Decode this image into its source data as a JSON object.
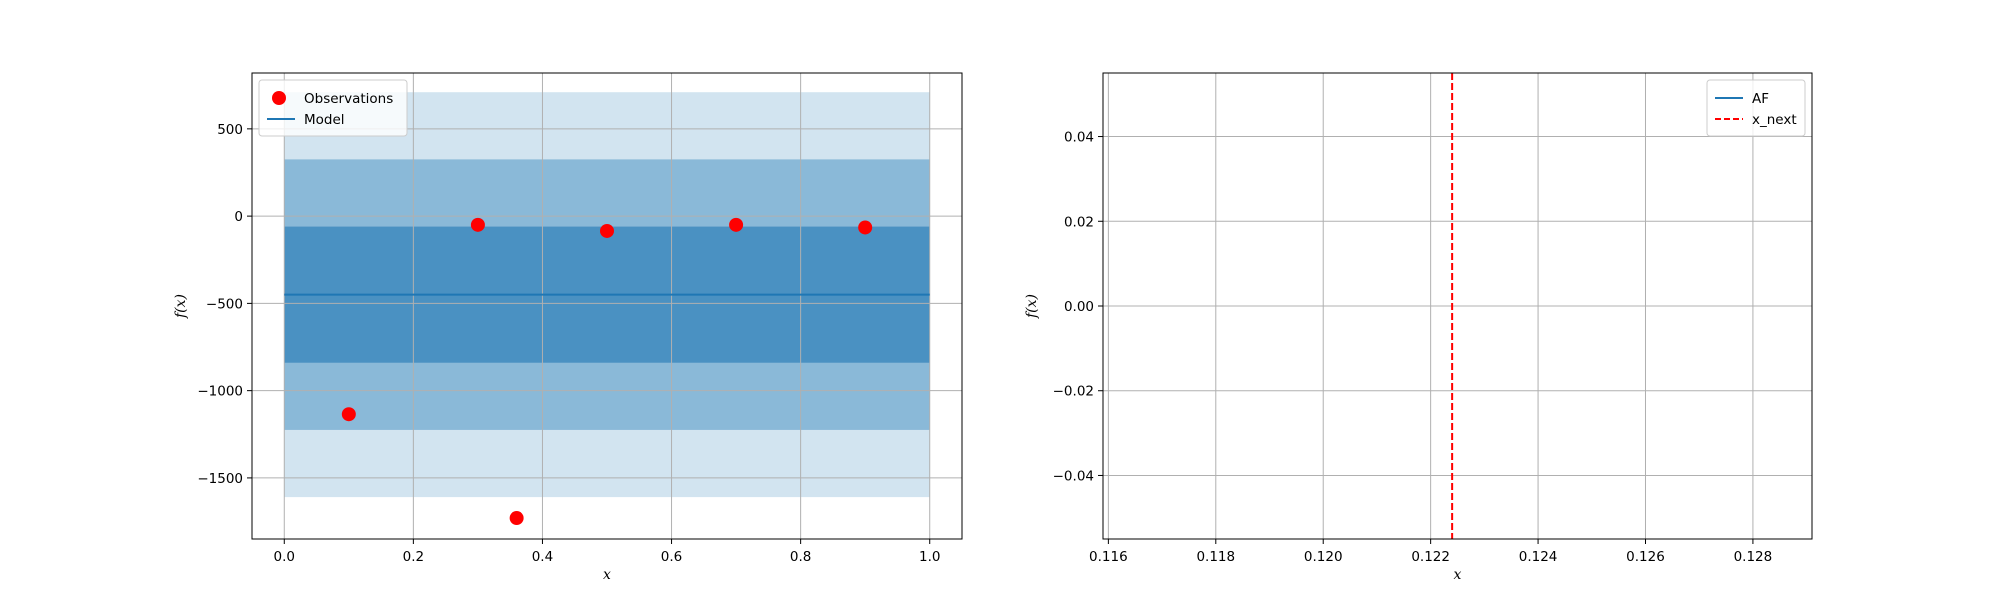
{
  "chart_data": [
    {
      "type": "scatter",
      "xlabel": "x",
      "ylabel": "f(x)",
      "xlim": [
        -0.05,
        1.05
      ],
      "ylim": [
        -1850,
        820
      ],
      "xticks": [
        0.0,
        0.2,
        0.4,
        0.6,
        0.8,
        1.0
      ],
      "xtick_labels": [
        "0.0",
        "0.2",
        "0.4",
        "0.6",
        "0.8",
        "1.0"
      ],
      "yticks": [
        500,
        0,
        -500,
        -1000,
        -1500
      ],
      "ytick_labels": [
        "500",
        "0",
        "−500",
        "−1000",
        "−1500"
      ],
      "grid": true,
      "legend_location": "upper-left",
      "series": [
        {
          "name": "Observations",
          "kind": "points",
          "color": "#ff0000",
          "points": [
            {
              "x": 0.1,
              "y": -1135
            },
            {
              "x": 0.3,
              "y": -50
            },
            {
              "x": 0.36,
              "y": -1730
            },
            {
              "x": 0.5,
              "y": -85
            },
            {
              "x": 0.7,
              "y": -50
            },
            {
              "x": 0.9,
              "y": -65
            }
          ]
        },
        {
          "name": "Model",
          "kind": "line",
          "color": "#1f77b4",
          "x": [
            0.0,
            1.0
          ],
          "y": [
            -450,
            -450
          ]
        }
      ],
      "bands": [
        {
          "x": [
            0.0,
            1.0
          ],
          "lower": -1610,
          "upper": 710,
          "color": "#1f77b4",
          "opacity": 0.2
        },
        {
          "x": [
            0.0,
            1.0
          ],
          "lower": -1225,
          "upper": 325,
          "color": "#1f77b4",
          "opacity": 0.4
        },
        {
          "x": [
            0.0,
            1.0
          ],
          "lower": -840,
          "upper": -60,
          "color": "#1f77b4",
          "opacity": 0.6
        }
      ]
    },
    {
      "type": "line",
      "xlabel": "x",
      "ylabel": "f(x)",
      "xlim": [
        0.1159,
        0.1291
      ],
      "ylim": [
        -0.055,
        0.055
      ],
      "xticks": [
        0.116,
        0.118,
        0.12,
        0.122,
        0.124,
        0.126,
        0.128
      ],
      "xtick_labels": [
        "0.116",
        "0.118",
        "0.120",
        "0.122",
        "0.124",
        "0.126",
        "0.128"
      ],
      "yticks": [
        0.04,
        0.02,
        0.0,
        -0.02,
        -0.04
      ],
      "ytick_labels": [
        "0.04",
        "0.02",
        "0.00",
        "−0.02",
        "−0.04"
      ],
      "grid": true,
      "legend_location": "upper-right",
      "series": [
        {
          "name": "AF",
          "kind": "line",
          "color": "#1f77b4",
          "x": [],
          "y": []
        },
        {
          "name": "x_next",
          "kind": "vline",
          "color": "#ff0000",
          "dashed": true,
          "x": 0.1224
        }
      ]
    }
  ]
}
